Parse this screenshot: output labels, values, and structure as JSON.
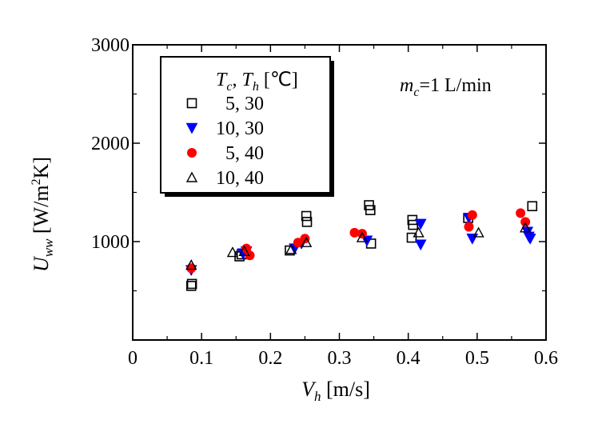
{
  "chart_data": {
    "type": "scatter",
    "xlim": [
      0,
      0.6
    ],
    "ylim": [
      0,
      3000
    ],
    "x_ticks": [
      "0",
      "0.1",
      "0.2",
      "0.3",
      "0.4",
      "0.5",
      "0.6"
    ],
    "y_ticks": [
      "1000",
      "2000",
      "3000"
    ],
    "xlabel": {
      "var": "V",
      "sub": "h",
      "unit": " [m/s]"
    },
    "ylabel": {
      "var": "U",
      "sub": "ww",
      "unit_pre": " [W/m",
      "unit_sup": "2",
      "unit_post": "K]"
    },
    "annotation": {
      "var": "m",
      "sub": "c",
      "text": "=1 L/min"
    },
    "legend": {
      "position": "top-left",
      "title": {
        "var1": "T",
        "sub1": "c",
        "sep": ", ",
        "var2": "T",
        "sub2": "h",
        "unit": " [℃]"
      }
    },
    "grid": false,
    "series": [
      {
        "name": "  5, 30",
        "marker": "open-square",
        "color": "#000000",
        "points": [
          [
            0.085,
            550
          ],
          [
            0.086,
            570
          ],
          [
            0.155,
            850
          ],
          [
            0.158,
            870
          ],
          [
            0.228,
            910
          ],
          [
            0.252,
            1260
          ],
          [
            0.253,
            1200
          ],
          [
            0.343,
            1370
          ],
          [
            0.345,
            1320
          ],
          [
            0.346,
            980
          ],
          [
            0.405,
            1040
          ],
          [
            0.406,
            1220
          ],
          [
            0.407,
            1170
          ],
          [
            0.487,
            1240
          ],
          [
            0.58,
            1360
          ]
        ]
      },
      {
        "name": "10, 30",
        "marker": "filled-down-triangle",
        "color": "#0000ff",
        "points": [
          [
            0.085,
            710
          ],
          [
            0.16,
            880
          ],
          [
            0.165,
            900
          ],
          [
            0.235,
            930
          ],
          [
            0.245,
            980
          ],
          [
            0.34,
            1010
          ],
          [
            0.418,
            1180
          ],
          [
            0.418,
            970
          ],
          [
            0.488,
            1240
          ],
          [
            0.493,
            1030
          ],
          [
            0.573,
            1100
          ],
          [
            0.575,
            1050
          ],
          [
            0.577,
            1030
          ]
        ]
      },
      {
        "name": "  5, 40",
        "marker": "filled-circle",
        "color": "#ff0000",
        "points": [
          [
            0.085,
            730
          ],
          [
            0.165,
            930
          ],
          [
            0.17,
            860
          ],
          [
            0.24,
            990
          ],
          [
            0.25,
            1030
          ],
          [
            0.322,
            1090
          ],
          [
            0.333,
            1080
          ],
          [
            0.488,
            1150
          ],
          [
            0.493,
            1270
          ],
          [
            0.563,
            1290
          ],
          [
            0.57,
            1200
          ]
        ]
      },
      {
        "name": "10, 40",
        "marker": "open-up-triangle",
        "color": "#000000",
        "points": [
          [
            0.085,
            760
          ],
          [
            0.145,
            890
          ],
          [
            0.162,
            900
          ],
          [
            0.23,
            920
          ],
          [
            0.252,
            990
          ],
          [
            0.333,
            1040
          ],
          [
            0.415,
            1090
          ],
          [
            0.502,
            1090
          ],
          [
            0.57,
            1140
          ]
        ]
      }
    ]
  }
}
